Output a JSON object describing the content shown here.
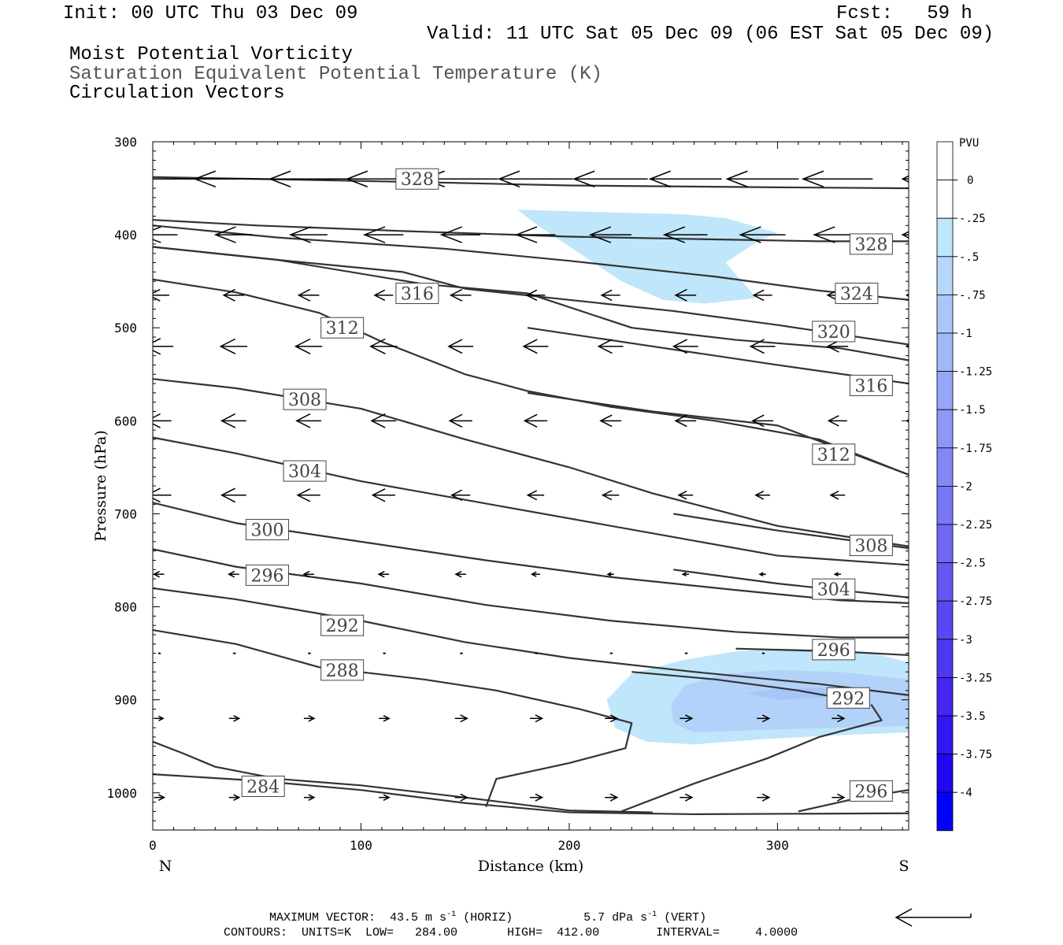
{
  "header": {
    "init": "Init: 00 UTC Thu 03 Dec 09",
    "fcst": "Fcst:   59 h",
    "valid": "Valid: 11 UTC Sat 05 Dec 09 (06 EST Sat 05 Dec 09)",
    "line1": "Moist Potential Vorticity",
    "line2": "Saturation Equivalent Potential Temperature (K)",
    "line3": "Circulation Vectors"
  },
  "footer": {
    "max_vector_label": "MAXIMUM VECTOR:",
    "horiz": "43.5 m s",
    "horiz_unit": "(HORIZ)",
    "vert": "5.7 dPa s",
    "vert_unit": "(VERT)",
    "sup": "-1",
    "contours": "CONTOURS:  UNITS=K  LOW=   284.00       HIGH=  412.00        INTERVAL=     4.0000"
  },
  "chart_data": {
    "type": "cross-section",
    "xlabel": "Distance (km)",
    "ylabel": "Pressure (hPa)",
    "xlim": [
      0,
      363
    ],
    "ylim": [
      300,
      1040
    ],
    "x_ticks": [
      "0",
      "100",
      "200",
      "300"
    ],
    "y_ticks": [
      "300",
      "400",
      "500",
      "600",
      "700",
      "800",
      "900",
      "1000"
    ],
    "x_end_left": "N",
    "x_end_right": "S",
    "colorbar": {
      "unit": "PVU",
      "labels": [
        "0",
        "-.25",
        "-.5",
        "-.75",
        "-1",
        "-1.25",
        "-1.5",
        "-1.75",
        "-2",
        "-2.25",
        "-2.5",
        "-2.75",
        "-3",
        "-3.25",
        "-3.5",
        "-3.75",
        "-4"
      ],
      "colors": [
        "#ffffff",
        "#ffffff",
        "#bfe6fb",
        "#b5d7fa",
        "#abc7f9",
        "#a1b7f8",
        "#97a7f7",
        "#8d97f6",
        "#8387f5",
        "#7977f4",
        "#6f67f3",
        "#6557f2",
        "#5b47f1",
        "#4f37f0",
        "#4327f0",
        "#3317f0",
        "#1f07f0",
        "#0000ff"
      ]
    },
    "shading": [
      {
        "name": "mpv-upper",
        "level": -0.25,
        "color": "#bfe6fb",
        "points": [
          [
            175,
            373
          ],
          [
            205,
            375
          ],
          [
            255,
            378
          ],
          [
            275,
            382
          ],
          [
            300,
            398
          ],
          [
            290,
            408
          ],
          [
            275,
            430
          ],
          [
            290,
            468
          ],
          [
            265,
            474
          ],
          [
            245,
            470
          ],
          [
            225,
            450
          ],
          [
            205,
            420
          ],
          [
            185,
            390
          ]
        ]
      },
      {
        "name": "mpv-lower",
        "level": -0.25,
        "color": "#bfe6fb",
        "points": [
          [
            230,
            872
          ],
          [
            255,
            857
          ],
          [
            280,
            848
          ],
          [
            300,
            845
          ],
          [
            330,
            846
          ],
          [
            350,
            852
          ],
          [
            363,
            860
          ],
          [
            363,
            935
          ],
          [
            330,
            938
          ],
          [
            295,
            942
          ],
          [
            260,
            948
          ],
          [
            237,
            945
          ],
          [
            222,
            930
          ],
          [
            218,
            900
          ]
        ]
      },
      {
        "name": "mpv-lower-core",
        "level": -0.5,
        "color": "#b2d2fa",
        "points": [
          [
            255,
            885
          ],
          [
            275,
            872
          ],
          [
            300,
            868
          ],
          [
            330,
            870
          ],
          [
            363,
            878
          ],
          [
            363,
            928
          ],
          [
            330,
            930
          ],
          [
            295,
            932
          ],
          [
            260,
            935
          ],
          [
            250,
            925
          ],
          [
            249,
            905
          ]
        ]
      },
      {
        "name": "mpv-lower-min",
        "level": -0.75,
        "color": "#a9c4f9",
        "points": [
          [
            285,
            893
          ],
          [
            300,
            888
          ],
          [
            320,
            887
          ],
          [
            340,
            892
          ],
          [
            320,
            898
          ],
          [
            300,
            900
          ]
        ]
      }
    ],
    "contours": [
      {
        "value": "328",
        "label_at": [
          127,
          340
        ],
        "points": [
          [
            0,
            338
          ],
          [
            50,
            340
          ],
          [
            120,
            343
          ],
          [
            200,
            347
          ],
          [
            300,
            349
          ],
          [
            363,
            350
          ]
        ]
      },
      {
        "value": "328",
        "label_at": [
          345,
          410
        ],
        "points": [
          [
            0,
            384
          ],
          [
            50,
            390
          ],
          [
            120,
            396
          ],
          [
            200,
            402
          ],
          [
            270,
            405
          ],
          [
            320,
            407
          ],
          [
            363,
            407
          ]
        ]
      },
      {
        "value": "324",
        "label_at": [
          338,
          463
        ],
        "points": [
          [
            0,
            390
          ],
          [
            60,
            403
          ],
          [
            140,
            415
          ],
          [
            200,
            428
          ],
          [
            270,
            445
          ],
          [
            320,
            460
          ],
          [
            363,
            470
          ]
        ]
      },
      {
        "value": "316",
        "label_at": [
          127,
          463
        ],
        "points": [
          [
            0,
            413
          ],
          [
            60,
            427
          ],
          [
            130,
            453
          ],
          [
            180,
            463
          ],
          [
            230,
            500
          ],
          [
            280,
            513
          ],
          [
            330,
            522
          ],
          [
            363,
            535
          ]
        ]
      },
      {
        "value": "320",
        "label_at": [
          327,
          504
        ],
        "points": [
          [
            0,
            413
          ],
          [
            60,
            427
          ],
          [
            120,
            440
          ],
          [
            150,
            458
          ],
          [
            200,
            470
          ],
          [
            250,
            482
          ],
          [
            300,
            497
          ],
          [
            363,
            518
          ]
        ]
      },
      {
        "value": "316",
        "label_at": [
          345,
          562
        ],
        "points": [
          [
            180,
            500
          ],
          [
            240,
            520
          ],
          [
            300,
            540
          ],
          [
            363,
            560
          ]
        ]
      },
      {
        "value": "312",
        "label_at": [
          91,
          500
        ],
        "points": [
          [
            0,
            448
          ],
          [
            40,
            462
          ],
          [
            80,
            484
          ],
          [
            110,
            515
          ],
          [
            150,
            550
          ],
          [
            180,
            568
          ],
          [
            220,
            585
          ],
          [
            270,
            600
          ],
          [
            320,
            620
          ],
          [
            363,
            658
          ]
        ]
      },
      {
        "value": "308",
        "label_at": [
          73,
          577
        ],
        "points": [
          [
            0,
            555
          ],
          [
            40,
            565
          ],
          [
            100,
            587
          ],
          [
            150,
            620
          ],
          [
            200,
            650
          ],
          [
            240,
            678
          ],
          [
            300,
            713
          ],
          [
            363,
            735
          ]
        ]
      },
      {
        "value": "312",
        "label_at": [
          327,
          636
        ],
        "points": [
          [
            180,
            570
          ],
          [
            240,
            590
          ],
          [
            300,
            605
          ],
          [
            363,
            658
          ]
        ]
      },
      {
        "value": "304",
        "label_at": [
          73,
          654
        ],
        "points": [
          [
            0,
            618
          ],
          [
            40,
            635
          ],
          [
            100,
            665
          ],
          [
            150,
            685
          ],
          [
            200,
            705
          ],
          [
            250,
            725
          ],
          [
            300,
            745
          ],
          [
            363,
            755
          ]
        ]
      },
      {
        "value": "308",
        "label_at": [
          345,
          734
        ],
        "points": [
          [
            250,
            700
          ],
          [
            300,
            718
          ],
          [
            363,
            737
          ]
        ]
      },
      {
        "value": "300",
        "label_at": [
          55,
          717
        ],
        "points": [
          [
            0,
            688
          ],
          [
            40,
            710
          ],
          [
            100,
            730
          ],
          [
            160,
            750
          ],
          [
            220,
            768
          ],
          [
            280,
            782
          ],
          [
            330,
            793
          ],
          [
            363,
            796
          ]
        ]
      },
      {
        "value": "304",
        "label_at": [
          327,
          781
        ],
        "points": [
          [
            250,
            760
          ],
          [
            300,
            775
          ],
          [
            363,
            790
          ]
        ]
      },
      {
        "value": "296",
        "label_at": [
          55,
          766
        ],
        "points": [
          [
            0,
            738
          ],
          [
            40,
            757
          ],
          [
            100,
            775
          ],
          [
            160,
            798
          ],
          [
            220,
            815
          ],
          [
            280,
            827
          ],
          [
            330,
            833
          ],
          [
            363,
            833
          ]
        ]
      },
      {
        "value": "292",
        "label_at": [
          91,
          820
        ],
        "points": [
          [
            0,
            780
          ],
          [
            40,
            792
          ],
          [
            100,
            815
          ],
          [
            150,
            838
          ],
          [
            200,
            855
          ],
          [
            260,
            870
          ],
          [
            320,
            883
          ],
          [
            363,
            895
          ]
        ]
      },
      {
        "value": "296",
        "label_at": [
          327,
          846
        ],
        "points": [
          [
            280,
            845
          ],
          [
            330,
            848
          ],
          [
            363,
            852
          ]
        ]
      },
      {
        "value": "288",
        "label_at": [
          91,
          868
        ],
        "points": [
          [
            0,
            825
          ],
          [
            40,
            840
          ],
          [
            80,
            865
          ],
          [
            130,
            878
          ],
          [
            165,
            890
          ],
          [
            205,
            910
          ],
          [
            230,
            925
          ],
          [
            227,
            952
          ],
          [
            200,
            968
          ],
          [
            165,
            985
          ],
          [
            160,
            1015
          ]
        ]
      },
      {
        "value": "292",
        "label_at": [
          334,
          898
        ],
        "points": [
          [
            230,
            870
          ],
          [
            270,
            878
          ],
          [
            310,
            890
          ],
          [
            335,
            900
          ]
        ]
      },
      {
        "value": "292",
        "label_at": [
          334,
          898
        ],
        "points": [
          [
            345,
            905
          ],
          [
            350,
            922
          ],
          [
            320,
            940
          ],
          [
            295,
            963
          ],
          [
            260,
            990
          ],
          [
            225,
            1020
          ]
        ]
      },
      {
        "value": "284",
        "label_at": [
          53,
          993
        ],
        "points": [
          [
            0,
            945
          ],
          [
            15,
            958
          ],
          [
            30,
            972
          ],
          [
            60,
            985
          ],
          [
            100,
            992
          ],
          [
            150,
            1005
          ],
          [
            200,
            1019
          ],
          [
            240,
            1021
          ]
        ]
      },
      {
        "value": "284",
        "label_at": [
          53,
          993
        ],
        "points": [
          [
            0,
            980
          ],
          [
            50,
            987
          ],
          [
            100,
            997
          ],
          [
            150,
            1011
          ],
          [
            200,
            1021
          ],
          [
            260,
            1023
          ],
          [
            363,
            1022
          ]
        ]
      },
      {
        "value": "296",
        "label_at": [
          345,
          998
        ],
        "points": [
          [
            310,
            1020
          ],
          [
            340,
            1005
          ],
          [
            363,
            997
          ]
        ]
      }
    ],
    "vectors": {
      "x": [
        0,
        36,
        72,
        108,
        145,
        181,
        217,
        253,
        290,
        326,
        362
      ],
      "rows": [
        {
          "p": 340,
          "u": [
            -38,
            -38,
            -38,
            -36,
            -36,
            -36,
            -36,
            -35,
            -35,
            -34,
            -10
          ]
        },
        {
          "p": 400,
          "u": [
            -18,
            -18,
            -18,
            -19,
            -19,
            -19,
            -20,
            -21,
            -22,
            -23,
            -10
          ]
        },
        {
          "p": 465,
          "u": [
            -10,
            -10,
            -10,
            -9,
            -10,
            -9,
            -9,
            -10,
            -9,
            -10,
            -6
          ]
        },
        {
          "p": 520,
          "u": [
            -14,
            -13,
            -13,
            -13,
            -12,
            -12,
            -12,
            -12,
            -12,
            -10,
            -6
          ]
        },
        {
          "p": 600,
          "u": [
            -12,
            -12,
            -12,
            -12,
            -11,
            -11,
            -10,
            -10,
            -10,
            -9,
            -6
          ]
        },
        {
          "p": 680,
          "u": [
            -12,
            -12,
            -11,
            -11,
            -9,
            -8,
            -8,
            -7,
            -7,
            -7,
            -5
          ]
        },
        {
          "p": 765,
          "u": [
            -5,
            -5,
            -5,
            -5,
            -5,
            -4,
            -3,
            -3,
            -3,
            -3,
            -2
          ]
        },
        {
          "p": 850,
          "u": [
            1,
            1,
            1,
            1,
            1,
            1,
            1,
            1,
            1,
            1,
            0
          ]
        },
        {
          "p": 920,
          "u": [
            4,
            5,
            5,
            5,
            6,
            6,
            6,
            6,
            6,
            6,
            3
          ]
        },
        {
          "p": 1005,
          "u": [
            5,
            5,
            5,
            5,
            6,
            6,
            6,
            6,
            6,
            6,
            3
          ]
        }
      ]
    }
  }
}
